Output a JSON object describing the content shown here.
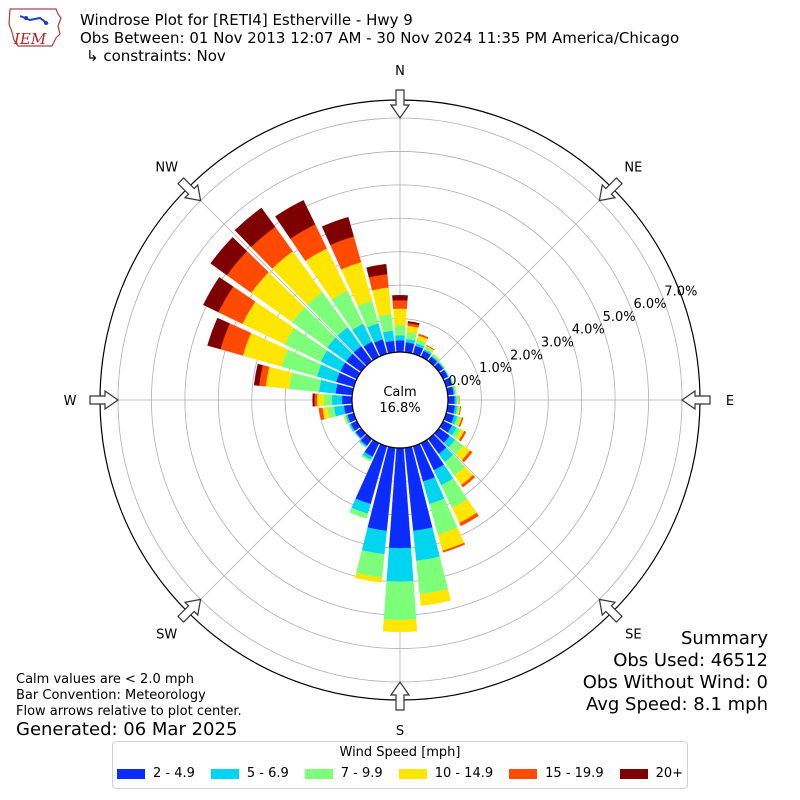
{
  "header": {
    "logo_text": "IEM",
    "title": "Windrose Plot for [RETI4] Estherville - Hwy 9",
    "obs_between": "Obs Between: 01 Nov 2013 12:07 AM - 30 Nov 2024 11:35 PM America/Chicago",
    "constraints": "↳ constraints: Nov"
  },
  "notes": {
    "calm_def": "Calm values are < 2.0 mph",
    "bar_convention": "Bar Convention: Meteorology",
    "flow_arrows": "Flow arrows relative to plot center.",
    "generated": "Generated: 06 Mar 2025"
  },
  "summary": {
    "title": "Summary",
    "obs_used": "Obs Used: 46512",
    "obs_without_wind": "Obs Without Wind: 0",
    "avg_speed": "Avg Speed: 8.1 mph"
  },
  "legend": {
    "title": "Wind Speed [mph]",
    "items": [
      {
        "label": "2 - 4.9",
        "color": "#0a2cff"
      },
      {
        "label": "5 - 6.9",
        "color": "#00d5f0"
      },
      {
        "label": "7 - 9.9",
        "color": "#7dff7a"
      },
      {
        "label": "10 - 14.9",
        "color": "#ffe600"
      },
      {
        "label": "15 - 19.9",
        "color": "#ff4a00"
      },
      {
        "label": "20+",
        "color": "#7f0000"
      }
    ]
  },
  "chart_data": {
    "type": "windrose",
    "title": "Windrose Plot for [RETI4] Estherville - Hwy 9",
    "calm_label": "Calm",
    "calm_value": "16.8%",
    "radial_ticks": [
      "0.0%",
      "1.0%",
      "2.0%",
      "3.0%",
      "4.0%",
      "5.0%",
      "6.0%",
      "7.0%"
    ],
    "radial_max": 7.0,
    "directions": [
      "N",
      "NE",
      "E",
      "SE",
      "S",
      "SW",
      "W",
      "NW"
    ],
    "speed_bins": [
      "2 - 4.9",
      "5 - 6.9",
      "7 - 9.9",
      "10 - 14.9",
      "15 - 19.9",
      "20+"
    ],
    "sectors": [
      {
        "direction": 0,
        "values": [
          0.35,
          0.15,
          0.3,
          0.5,
          0.25,
          0.15
        ]
      },
      {
        "direction": 10,
        "values": [
          0.3,
          0.1,
          0.2,
          0.2,
          0.08,
          0.05
        ]
      },
      {
        "direction": 20,
        "values": [
          0.25,
          0.08,
          0.12,
          0.12,
          0.05,
          0.0
        ]
      },
      {
        "direction": 30,
        "values": [
          0.2,
          0.05,
          0.07,
          0.05,
          0.02,
          0.0
        ]
      },
      {
        "direction": 40,
        "values": [
          0.16,
          0.04,
          0.05,
          0.02,
          0.0,
          0.0
        ]
      },
      {
        "direction": 50,
        "values": [
          0.16,
          0.03,
          0.03,
          0.0,
          0.0,
          0.0
        ]
      },
      {
        "direction": 60,
        "values": [
          0.16,
          0.02,
          0.02,
          0.0,
          0.0,
          0.0
        ]
      },
      {
        "direction": 70,
        "values": [
          0.18,
          0.03,
          0.02,
          0.0,
          0.0,
          0.0
        ]
      },
      {
        "direction": 80,
        "values": [
          0.18,
          0.04,
          0.03,
          0.02,
          0.0,
          0.0
        ]
      },
      {
        "direction": 90,
        "values": [
          0.2,
          0.06,
          0.04,
          0.03,
          0.01,
          0.0
        ]
      },
      {
        "direction": 100,
        "values": [
          0.22,
          0.07,
          0.05,
          0.04,
          0.02,
          0.0
        ]
      },
      {
        "direction": 110,
        "values": [
          0.25,
          0.1,
          0.08,
          0.06,
          0.04,
          0.0
        ]
      },
      {
        "direction": 120,
        "values": [
          0.3,
          0.15,
          0.15,
          0.1,
          0.06,
          0.0
        ]
      },
      {
        "direction": 130,
        "values": [
          0.4,
          0.2,
          0.3,
          0.25,
          0.08,
          0.0
        ]
      },
      {
        "direction": 140,
        "values": [
          0.55,
          0.3,
          0.5,
          0.35,
          0.08,
          0.0
        ]
      },
      {
        "direction": 150,
        "values": [
          0.9,
          0.5,
          0.75,
          0.5,
          0.1,
          0.0
        ]
      },
      {
        "direction": 160,
        "values": [
          1.1,
          0.7,
          0.95,
          0.5,
          0.05,
          0.0
        ]
      },
      {
        "direction": 170,
        "values": [
          2.5,
          0.9,
          1.0,
          0.35,
          0.0,
          0.0
        ]
      },
      {
        "direction": 180,
        "values": [
          3.0,
          1.0,
          1.15,
          0.35,
          0.0,
          0.0
        ]
      },
      {
        "direction": 190,
        "values": [
          2.5,
          0.7,
          0.7,
          0.15,
          0.0,
          0.0
        ]
      },
      {
        "direction": 200,
        "values": [
          1.8,
          0.3,
          0.15,
          0.0,
          0.0,
          0.0
        ]
      },
      {
        "direction": 210,
        "values": [
          0.45,
          0.1,
          0.05,
          0.0,
          0.0,
          0.0
        ]
      },
      {
        "direction": 220,
        "values": [
          0.25,
          0.05,
          0.02,
          0.0,
          0.0,
          0.0
        ]
      },
      {
        "direction": 230,
        "values": [
          0.2,
          0.03,
          0.0,
          0.0,
          0.0,
          0.0
        ]
      },
      {
        "direction": 240,
        "values": [
          0.2,
          0.05,
          0.02,
          0.0,
          0.0,
          0.0
        ]
      },
      {
        "direction": 250,
        "values": [
          0.2,
          0.05,
          0.05,
          0.02,
          0.0,
          0.0
        ]
      },
      {
        "direction": 260,
        "values": [
          0.25,
          0.3,
          0.2,
          0.15,
          0.1,
          0.0
        ]
      },
      {
        "direction": 270,
        "values": [
          0.3,
          0.3,
          0.25,
          0.2,
          0.08,
          0.05
        ]
      },
      {
        "direction": 280,
        "values": [
          0.5,
          0.5,
          0.9,
          0.7,
          0.2,
          0.15
        ]
      },
      {
        "direction": 290,
        "values": [
          0.55,
          0.6,
          1.1,
          1.2,
          0.7,
          0.4
        ]
      },
      {
        "direction": 300,
        "values": [
          0.55,
          0.65,
          1.2,
          1.4,
          0.8,
          0.5
        ]
      },
      {
        "direction": 310,
        "values": [
          0.55,
          0.7,
          1.3,
          1.5,
          0.9,
          0.6
        ]
      },
      {
        "direction": 320,
        "values": [
          0.55,
          0.7,
          1.3,
          1.5,
          0.9,
          0.7
        ]
      },
      {
        "direction": 330,
        "values": [
          0.5,
          0.6,
          1.1,
          1.4,
          0.8,
          0.8
        ]
      },
      {
        "direction": 340,
        "values": [
          0.45,
          0.5,
          0.7,
          1.2,
          0.8,
          0.6
        ]
      },
      {
        "direction": 350,
        "values": [
          0.35,
          0.3,
          0.5,
          0.8,
          0.4,
          0.3
        ]
      }
    ]
  }
}
